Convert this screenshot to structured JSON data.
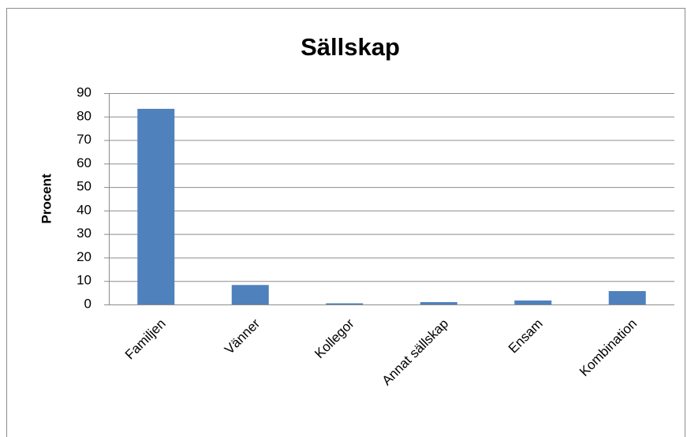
{
  "chart_data": {
    "type": "bar",
    "title": "Sällskap",
    "y_label": "Procent",
    "categories": [
      "Familjen",
      "Vänner",
      "Kollegor",
      "Annat sällskap",
      "Ensam",
      "Kombination"
    ],
    "values": [
      83.3,
      8.3,
      0.5,
      1,
      1.7,
      5.7
    ],
    "color": "#4f81bd",
    "ylim": [
      0,
      90
    ],
    "yticks": [
      0,
      10,
      20,
      30,
      40,
      50,
      60,
      70,
      80,
      90
    ],
    "grid": true
  }
}
